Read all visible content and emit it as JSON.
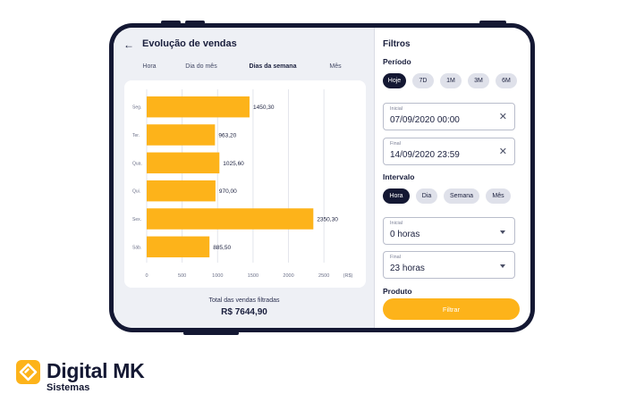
{
  "header": {
    "title": "Evolução de vendas",
    "back_icon": "arrow-left-icon"
  },
  "tabs": [
    {
      "label": "Hora",
      "active": false
    },
    {
      "label": "Dia do mês",
      "active": false
    },
    {
      "label": "Dias da semana",
      "active": true
    },
    {
      "label": "Mês",
      "active": false
    }
  ],
  "chart_data": {
    "type": "bar",
    "orientation": "horizontal",
    "categories": [
      "Seg.",
      "Ter.",
      "Qua.",
      "Qui.",
      "Sex.",
      "Sáb."
    ],
    "values": [
      1450.3,
      963.2,
      1025.6,
      970.0,
      2350.3,
      885.5
    ],
    "value_labels": [
      "1450,30",
      "963,20",
      "1025,60",
      "970,00",
      "2350,30",
      "885,50"
    ],
    "xticks": [
      0,
      500,
      1000,
      1500,
      2000,
      2500
    ],
    "xlabel": "(R$)",
    "xlim": [
      0,
      2750
    ],
    "grid": true,
    "bar_color": "#fdb31a"
  },
  "summary": {
    "label": "Total das vendas filtradas",
    "value": "R$ 7644,90"
  },
  "filters": {
    "title": "Filtros",
    "periodo": {
      "label": "Período",
      "chips": [
        {
          "label": "Hoje",
          "active": true
        },
        {
          "label": "7D",
          "active": false
        },
        {
          "label": "1M",
          "active": false
        },
        {
          "label": "3M",
          "active": false
        },
        {
          "label": "6M",
          "active": false
        }
      ],
      "inicial": {
        "label": "Inicial",
        "value": "07/09/2020  00:00"
      },
      "final": {
        "label": "Final",
        "value": "14/09/2020  23:59"
      }
    },
    "intervalo": {
      "label": "Intervalo",
      "chips": [
        {
          "label": "Hora",
          "active": true
        },
        {
          "label": "Dia",
          "active": false
        },
        {
          "label": "Semana",
          "active": false
        },
        {
          "label": "Mês",
          "active": false
        }
      ],
      "inicial": {
        "label": "Inicial",
        "value": "0 horas"
      },
      "final": {
        "label": "Final",
        "value": "23 horas"
      }
    },
    "produto_label": "Produto",
    "button_label": "Filtrar"
  },
  "colors": {
    "accent": "#fdb31a",
    "dark": "#141833"
  },
  "brand": {
    "name": "Digital MK",
    "sub": "Sistemas"
  }
}
